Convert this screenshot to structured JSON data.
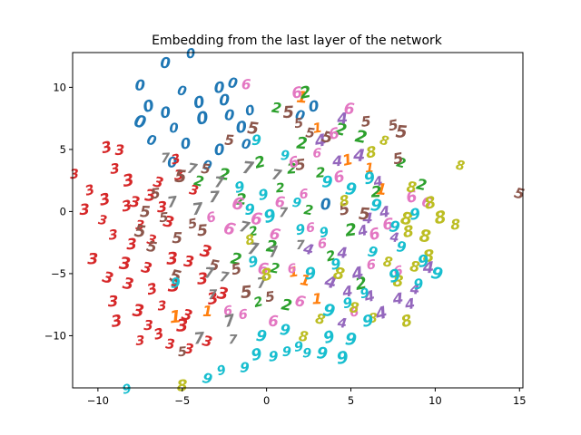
{
  "chart_data": {
    "type": "scatter",
    "title": "Embedding from the last layer of the network",
    "xlabel": "",
    "ylabel": "",
    "xlim": [
      -11.5,
      15.2
    ],
    "ylim": [
      -14.2,
      12.8
    ],
    "x_ticks": [
      -10,
      -5,
      0,
      5,
      10,
      15
    ],
    "y_ticks": [
      -10,
      -5,
      0,
      5,
      10
    ],
    "x_tick_labels": [
      "−10",
      "−5",
      "0",
      "5",
      "10",
      "15"
    ],
    "y_tick_labels": [
      "−10",
      "−5",
      "0",
      "5",
      "10"
    ],
    "grid": false,
    "legend": "none",
    "series": [
      {
        "label": "0",
        "color": "#1f77b4",
        "points": [
          [
            -6.0,
            12.0
          ],
          [
            -4.5,
            12.8
          ],
          [
            -7.5,
            10.2
          ],
          [
            -5.0,
            9.8
          ],
          [
            -2.8,
            10.0
          ],
          [
            -2.0,
            10.4
          ],
          [
            -7.0,
            8.5
          ],
          [
            -6.0,
            8.0
          ],
          [
            -4.0,
            8.8
          ],
          [
            -2.5,
            9.0
          ],
          [
            -1.0,
            8.2
          ],
          [
            -7.5,
            7.2
          ],
          [
            -5.5,
            6.8
          ],
          [
            -3.8,
            7.5
          ],
          [
            -2.2,
            7.8
          ],
          [
            -1.5,
            6.8
          ],
          [
            -6.8,
            5.8
          ],
          [
            -4.8,
            5.5
          ],
          [
            -2.8,
            5.0
          ],
          [
            -1.2,
            5.5
          ],
          [
            -5.6,
            4.0
          ],
          [
            -3.5,
            3.8
          ],
          [
            2.0,
            7.8
          ],
          [
            2.8,
            8.5
          ],
          [
            3.5,
            0.6
          ]
        ]
      },
      {
        "label": "1",
        "color": "#ff7f0e",
        "points": [
          [
            2.1,
            9.2
          ],
          [
            3.0,
            6.8
          ],
          [
            4.8,
            4.2
          ],
          [
            6.1,
            3.6
          ],
          [
            6.8,
            1.8
          ],
          [
            -5.4,
            -8.5
          ],
          [
            -3.5,
            -8.0
          ],
          [
            2.3,
            -5.5
          ],
          [
            3.0,
            -7.0
          ],
          [
            1.6,
            -4.8
          ]
        ]
      },
      {
        "label": "2",
        "color": "#2ca02c",
        "points": [
          [
            2.3,
            9.6
          ],
          [
            0.6,
            8.4
          ],
          [
            4.4,
            6.6
          ],
          [
            5.6,
            6.0
          ],
          [
            2.1,
            5.5
          ],
          [
            -0.4,
            4.0
          ],
          [
            1.5,
            3.5
          ],
          [
            3.2,
            3.2
          ],
          [
            -2.5,
            3.0
          ],
          [
            -4.0,
            2.5
          ],
          [
            0.8,
            2.0
          ],
          [
            6.5,
            1.6
          ],
          [
            8.0,
            4.0
          ],
          [
            9.2,
            2.2
          ],
          [
            -1.5,
            1.0
          ],
          [
            2.5,
            0.2
          ],
          [
            5.0,
            -1.5
          ],
          [
            -0.8,
            -1.5
          ],
          [
            0.3,
            -2.8
          ],
          [
            -1.8,
            -3.8
          ],
          [
            0.5,
            -4.5
          ],
          [
            3.8,
            -3.5
          ],
          [
            -0.5,
            -7.2
          ],
          [
            1.2,
            -7.5
          ],
          [
            5.6,
            -5.8
          ]
        ]
      },
      {
        "label": "3",
        "color": "#d62728",
        "points": [
          [
            -9.5,
            5.2
          ],
          [
            -8.7,
            5.0
          ],
          [
            -11.4,
            3.1
          ],
          [
            -9.0,
            3.5
          ],
          [
            -8.2,
            2.5
          ],
          [
            -10.5,
            1.8
          ],
          [
            -9.6,
            1.0
          ],
          [
            -8.3,
            0.5
          ],
          [
            -10.8,
            0.2
          ],
          [
            -9.7,
            -0.6
          ],
          [
            -7.8,
            0.8
          ],
          [
            -6.4,
            2.4
          ],
          [
            -6.9,
            1.3
          ],
          [
            -5.2,
            3.0
          ],
          [
            -4.3,
            1.8
          ],
          [
            -5.4,
            4.3
          ],
          [
            -9.1,
            -1.8
          ],
          [
            -7.5,
            -1.0
          ],
          [
            -6.2,
            0.4
          ],
          [
            -5.8,
            -0.8
          ],
          [
            -8.0,
            -2.6
          ],
          [
            -6.8,
            -2.2
          ],
          [
            -10.3,
            -3.8
          ],
          [
            -8.4,
            -4.2
          ],
          [
            -7.1,
            -4.5
          ],
          [
            -5.6,
            -3.8
          ],
          [
            -4.6,
            -4.0
          ],
          [
            -3.6,
            -3.2
          ],
          [
            -9.4,
            -5.3
          ],
          [
            -8.2,
            -5.8
          ],
          [
            -6.8,
            -6.2
          ],
          [
            -5.5,
            -6.0
          ],
          [
            -3.8,
            -5.4
          ],
          [
            -2.6,
            -6.6
          ],
          [
            -9.1,
            -7.2
          ],
          [
            -7.6,
            -8.0
          ],
          [
            -6.2,
            -7.5
          ],
          [
            -4.7,
            -8.3
          ],
          [
            -3.2,
            -7.0
          ],
          [
            -8.9,
            -8.8
          ],
          [
            -7.0,
            -9.1
          ],
          [
            -6.4,
            -9.8
          ],
          [
            -5.0,
            -9.2
          ],
          [
            -7.5,
            -10.3
          ],
          [
            -5.7,
            -10.6
          ],
          [
            -4.6,
            -11.0
          ],
          [
            -3.5,
            -10.4
          ]
        ]
      },
      {
        "label": "4",
        "color": "#9467bd",
        "points": [
          [
            4.5,
            7.5
          ],
          [
            3.2,
            5.7
          ],
          [
            4.2,
            4.1
          ],
          [
            5.5,
            4.5
          ],
          [
            6.6,
            2.5
          ],
          [
            7.0,
            0.0
          ],
          [
            6.0,
            -0.5
          ],
          [
            5.7,
            -1.5
          ],
          [
            7.6,
            -2.0
          ],
          [
            4.5,
            -3.3
          ],
          [
            5.4,
            -5.0
          ],
          [
            4.8,
            -6.4
          ],
          [
            6.1,
            -6.8
          ],
          [
            4.5,
            -8.9
          ],
          [
            6.8,
            -8.2
          ],
          [
            7.8,
            -7.0
          ],
          [
            8.5,
            -7.4
          ],
          [
            9.6,
            -4.5
          ],
          [
            8.8,
            -6.2
          ],
          [
            3.8,
            -5.7
          ],
          [
            2.5,
            -3.0
          ]
        ]
      },
      {
        "label": "5",
        "color": "#8c564b",
        "points": [
          [
            1.3,
            8.0
          ],
          [
            1.9,
            7.2
          ],
          [
            2.6,
            6.4
          ],
          [
            3.6,
            6.0
          ],
          [
            5.9,
            7.3
          ],
          [
            7.5,
            7.0
          ],
          [
            8.0,
            6.4
          ],
          [
            -0.8,
            6.7
          ],
          [
            -2.2,
            5.8
          ],
          [
            -3.6,
            3.5
          ],
          [
            -5.1,
            2.8
          ],
          [
            -6.6,
            1.5
          ],
          [
            -7.2,
            0.0
          ],
          [
            -6.1,
            -0.4
          ],
          [
            -7.5,
            -1.6
          ],
          [
            -5.3,
            -2.1
          ],
          [
            -3.8,
            -1.5
          ],
          [
            -4.4,
            -0.9
          ],
          [
            -6.8,
            -2.8
          ],
          [
            -5.4,
            -5.2
          ],
          [
            -3.1,
            -4.3
          ],
          [
            -1.8,
            -4.6
          ],
          [
            -1.2,
            -6.5
          ],
          [
            0.2,
            -6.8
          ],
          [
            -5.0,
            -11.2
          ],
          [
            15.0,
            1.5
          ],
          [
            5.8,
            -0.2
          ],
          [
            4.6,
            0.2
          ],
          [
            7.8,
            4.3
          ],
          [
            2.0,
            3.8
          ]
        ]
      },
      {
        "label": "6",
        "color": "#e377c2",
        "points": [
          [
            -1.2,
            10.3
          ],
          [
            1.8,
            9.6
          ],
          [
            4.9,
            8.3
          ],
          [
            4.0,
            6.3
          ],
          [
            3.0,
            4.8
          ],
          [
            1.6,
            4.0
          ],
          [
            4.3,
            2.8
          ],
          [
            2.2,
            1.5
          ],
          [
            0.8,
            0.8
          ],
          [
            -1.7,
            0.6
          ],
          [
            -3.3,
            -0.4
          ],
          [
            -2.2,
            -1.4
          ],
          [
            -0.6,
            -0.6
          ],
          [
            0.5,
            -1.8
          ],
          [
            2.6,
            -1.2
          ],
          [
            6.4,
            -1.8
          ],
          [
            7.2,
            -1.0
          ],
          [
            9.5,
            0.8
          ],
          [
            8.6,
            1.2
          ],
          [
            -0.2,
            -4.6
          ],
          [
            1.5,
            -4.5
          ],
          [
            -1.4,
            -8.2
          ],
          [
            -2.3,
            -7.9
          ],
          [
            0.4,
            -8.8
          ],
          [
            2.0,
            -7.2
          ],
          [
            5.2,
            -8.0
          ],
          [
            7.8,
            -4.7
          ],
          [
            3.3,
            -2.5
          ],
          [
            6.2,
            -4.2
          ]
        ]
      },
      {
        "label": "7",
        "color": "#7f7f7f",
        "points": [
          [
            -6.0,
            4.4
          ],
          [
            -4.4,
            3.5
          ],
          [
            -2.8,
            2.4
          ],
          [
            -1.1,
            3.5
          ],
          [
            0.6,
            3.0
          ],
          [
            -5.6,
            0.8
          ],
          [
            -4.1,
            0.2
          ],
          [
            -3.1,
            1.2
          ],
          [
            -1.3,
            -1.2
          ],
          [
            1.0,
            0.0
          ],
          [
            0.4,
            -3.2
          ],
          [
            -0.8,
            -3.0
          ],
          [
            -2.5,
            -5.2
          ],
          [
            -3.2,
            -6.6
          ],
          [
            -2.2,
            -8.8
          ],
          [
            -0.3,
            -5.7
          ],
          [
            2.0,
            -2.6
          ],
          [
            -4.0,
            -10.2
          ],
          [
            -2.0,
            -10.2
          ],
          [
            -3.4,
            -4.9
          ]
        ]
      },
      {
        "label": "8",
        "color": "#bcbd22",
        "points": [
          [
            11.5,
            3.8
          ],
          [
            8.6,
            2.0
          ],
          [
            9.7,
            0.7
          ],
          [
            8.3,
            -0.6
          ],
          [
            10.3,
            -0.5
          ],
          [
            11.2,
            -1.0
          ],
          [
            9.4,
            -2.0
          ],
          [
            9.6,
            -3.6
          ],
          [
            8.8,
            -4.4
          ],
          [
            7.2,
            -4.0
          ],
          [
            7.8,
            -5.6
          ],
          [
            5.2,
            -7.7
          ],
          [
            6.3,
            -8.5
          ],
          [
            4.6,
            0.9
          ],
          [
            6.2,
            4.8
          ],
          [
            7.0,
            5.8
          ],
          [
            8.4,
            -1.6
          ],
          [
            3.2,
            -8.6
          ],
          [
            2.2,
            -10.0
          ],
          [
            -5.0,
            -14.0
          ],
          [
            0.0,
            -5.1
          ],
          [
            -1.0,
            -2.2
          ],
          [
            4.3,
            -5.0
          ],
          [
            8.3,
            -8.8
          ]
        ]
      },
      {
        "label": "9",
        "color": "#17becf",
        "points": [
          [
            -8.3,
            -14.2
          ],
          [
            -3.5,
            -13.4
          ],
          [
            -2.7,
            -12.7
          ],
          [
            -1.3,
            -12.5
          ],
          [
            -0.6,
            -11.5
          ],
          [
            0.4,
            -11.6
          ],
          [
            1.2,
            -11.2
          ],
          [
            2.4,
            -11.3
          ],
          [
            3.3,
            -11.4
          ],
          [
            4.5,
            -11.8
          ],
          [
            5.0,
            -10.3
          ],
          [
            3.7,
            -10.1
          ],
          [
            1.9,
            -10.8
          ],
          [
            1.1,
            -9.5
          ],
          [
            -0.3,
            -10.0
          ],
          [
            3.7,
            -8.0
          ],
          [
            4.8,
            -7.3
          ],
          [
            6.0,
            -8.8
          ],
          [
            2.6,
            -5.0
          ],
          [
            4.1,
            -4.2
          ],
          [
            6.3,
            -3.2
          ],
          [
            7.6,
            -5.2
          ],
          [
            9.0,
            -5.8
          ],
          [
            10.1,
            -5.0
          ],
          [
            9.3,
            -4.0
          ],
          [
            8.0,
            -2.8
          ],
          [
            7.6,
            -1.2
          ],
          [
            8.8,
            -0.2
          ],
          [
            6.5,
            0.5
          ],
          [
            5.0,
            1.8
          ],
          [
            3.6,
            2.4
          ],
          [
            1.8,
            0.8
          ],
          [
            0.2,
            -0.4
          ],
          [
            -1.0,
            0.2
          ],
          [
            -1.6,
            2.0
          ],
          [
            -0.2,
            1.4
          ],
          [
            2.0,
            -1.4
          ],
          [
            3.4,
            -1.6
          ],
          [
            -5.4,
            -5.7
          ],
          [
            -0.8,
            -4.0
          ],
          [
            6.1,
            2.7
          ],
          [
            5.8,
            -6.5
          ],
          [
            1.1,
            4.6
          ],
          [
            -0.6,
            5.8
          ]
        ]
      }
    ]
  }
}
